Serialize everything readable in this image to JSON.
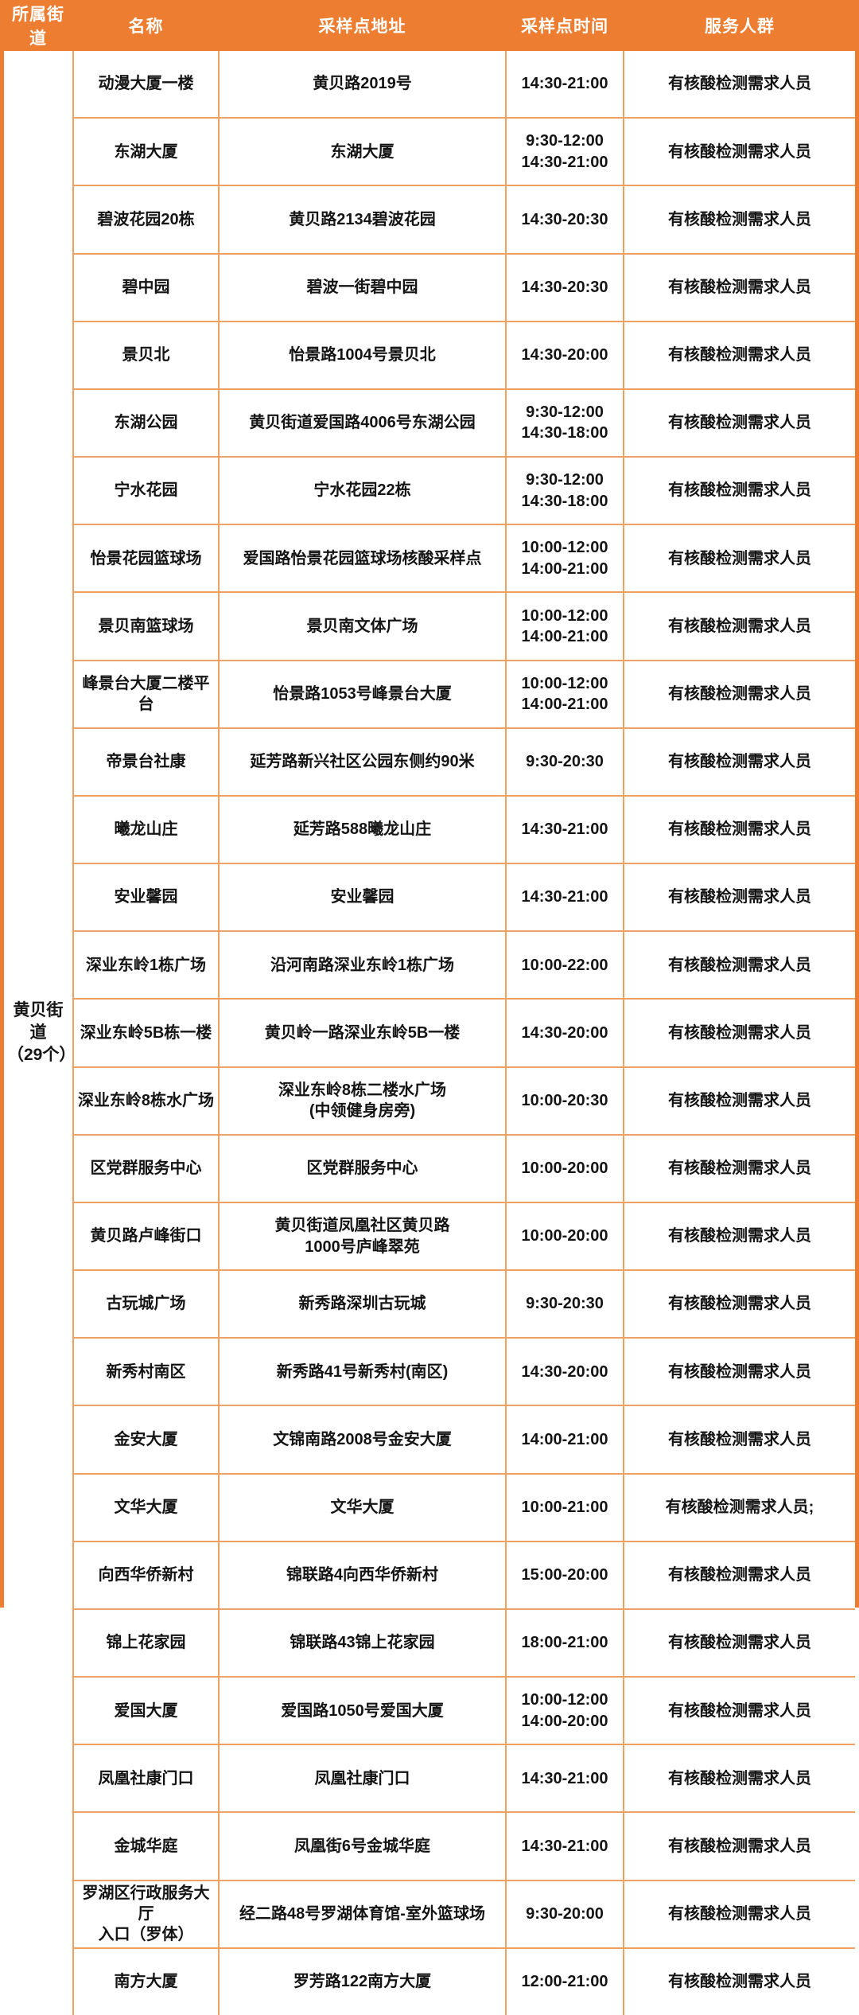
{
  "header": {
    "columns": [
      "所属街道",
      "名称",
      "采样点地址",
      "采样点时间",
      "服务人群"
    ]
  },
  "street_group": {
    "name": "黄贝街道",
    "count_label": "（29个）"
  },
  "rows": [
    {
      "name": "动漫大厦一楼",
      "address": "黄贝路2019号",
      "time": "14:30-21:00",
      "service": "有核酸检测需求人员"
    },
    {
      "name": "东湖大厦",
      "address": "东湖大厦",
      "time": "9:30-12:00\n14:30-21:00",
      "service": "有核酸检测需求人员"
    },
    {
      "name": "碧波花园20栋",
      "address": "黄贝路2134碧波花园",
      "time": "14:30-20:30",
      "service": "有核酸检测需求人员"
    },
    {
      "name": "碧中园",
      "address": "碧波一街碧中园",
      "time": "14:30-20:30",
      "service": "有核酸检测需求人员"
    },
    {
      "name": "景贝北",
      "address": "怡景路1004号景贝北",
      "time": "14:30-20:00",
      "service": "有核酸检测需求人员"
    },
    {
      "name": "东湖公园",
      "address": "黄贝街道爱国路4006号东湖公园",
      "time": "9:30-12:00\n14:30-18:00",
      "service": "有核酸检测需求人员"
    },
    {
      "name": "宁水花园",
      "address": "宁水花园22栋",
      "time": "9:30-12:00\n14:30-18:00",
      "service": "有核酸检测需求人员"
    },
    {
      "name": "怡景花园篮球场",
      "address": "爱国路怡景花园篮球场核酸采样点",
      "time": "10:00-12:00\n14:00-21:00",
      "service": "有核酸检测需求人员"
    },
    {
      "name": "景贝南篮球场",
      "address": "景贝南文体广场",
      "time": "10:00-12:00\n14:00-21:00",
      "service": "有核酸检测需求人员"
    },
    {
      "name": "峰景台大厦二楼平台",
      "address": "怡景路1053号峰景台大厦",
      "time": "10:00-12:00\n14:00-21:00",
      "service": "有核酸检测需求人员"
    },
    {
      "name": "帝景台社康",
      "address": "延芳路新兴社区公园东侧约90米",
      "time": "9:30-20:30",
      "service": "有核酸检测需求人员"
    },
    {
      "name": "曦龙山庄",
      "address": "延芳路588曦龙山庄",
      "time": "14:30-21:00",
      "service": "有核酸检测需求人员"
    },
    {
      "name": "安业馨园",
      "address": "安业馨园",
      "time": "14:30-21:00",
      "service": "有核酸检测需求人员"
    },
    {
      "name": "深业东岭1栋广场",
      "address": "沿河南路深业东岭1栋广场",
      "time": "10:00-22:00",
      "service": "有核酸检测需求人员"
    },
    {
      "name": "深业东岭5B栋一楼",
      "address": "黄贝岭一路深业东岭5B一楼",
      "time": "14:30-20:00",
      "service": "有核酸检测需求人员"
    },
    {
      "name": "深业东岭8栋水广场",
      "address": "深业东岭8栋二楼水广场\n(中领健身房旁)",
      "time": "10:00-20:30",
      "service": "有核酸检测需求人员"
    },
    {
      "name": "区党群服务中心",
      "address": "区党群服务中心",
      "time": "10:00-20:00",
      "service": "有核酸检测需求人员"
    },
    {
      "name": "黄贝路卢峰街口",
      "address": "黄贝街道凤凰社区黄贝路\n1000号庐峰翠苑",
      "time": "10:00-20:00",
      "service": "有核酸检测需求人员"
    },
    {
      "name": "古玩城广场",
      "address": "新秀路深圳古玩城",
      "time": "9:30-20:30",
      "service": "有核酸检测需求人员"
    },
    {
      "name": "新秀村南区",
      "address": "新秀路41号新秀村(南区)",
      "time": "14:30-20:00",
      "service": "有核酸检测需求人员"
    },
    {
      "name": "金安大厦",
      "address": "文锦南路2008号金安大厦",
      "time": "14:00-21:00",
      "service": "有核酸检测需求人员"
    },
    {
      "name": "文华大厦",
      "address": "文华大厦",
      "time": "10:00-21:00",
      "service": "有核酸检测需求人员;"
    },
    {
      "name": "向西华侨新村",
      "address": "锦联路4向西华侨新村",
      "time": "15:00-20:00",
      "service": "有核酸检测需求人员"
    },
    {
      "name": "锦上花家园",
      "address": "锦联路43锦上花家园",
      "time": "18:00-21:00",
      "service": "有核酸检测需求人员"
    },
    {
      "name": "爱国大厦",
      "address": "爱国路1050号爱国大厦",
      "time": "10:00-12:00\n14:00-20:00",
      "service": "有核酸检测需求人员"
    },
    {
      "name": "凤凰社康门口",
      "address": "凤凰社康门口",
      "time": "14:30-21:00",
      "service": "有核酸检测需求人员"
    },
    {
      "name": "金城华庭",
      "address": "凤凰街6号金城华庭",
      "time": "14:30-21:00",
      "service": "有核酸检测需求人员"
    },
    {
      "name": "罗湖区行政服务大厅\n入口（罗体）",
      "address": "经二路48号罗湖体育馆-室外篮球场",
      "time": "9:30-20:00",
      "service": "有核酸检测需求人员"
    },
    {
      "name": "南方大厦",
      "address": "罗芳路122南方大厦",
      "time": "12:00-21:00",
      "service": "有核酸检测需求人员"
    }
  ]
}
